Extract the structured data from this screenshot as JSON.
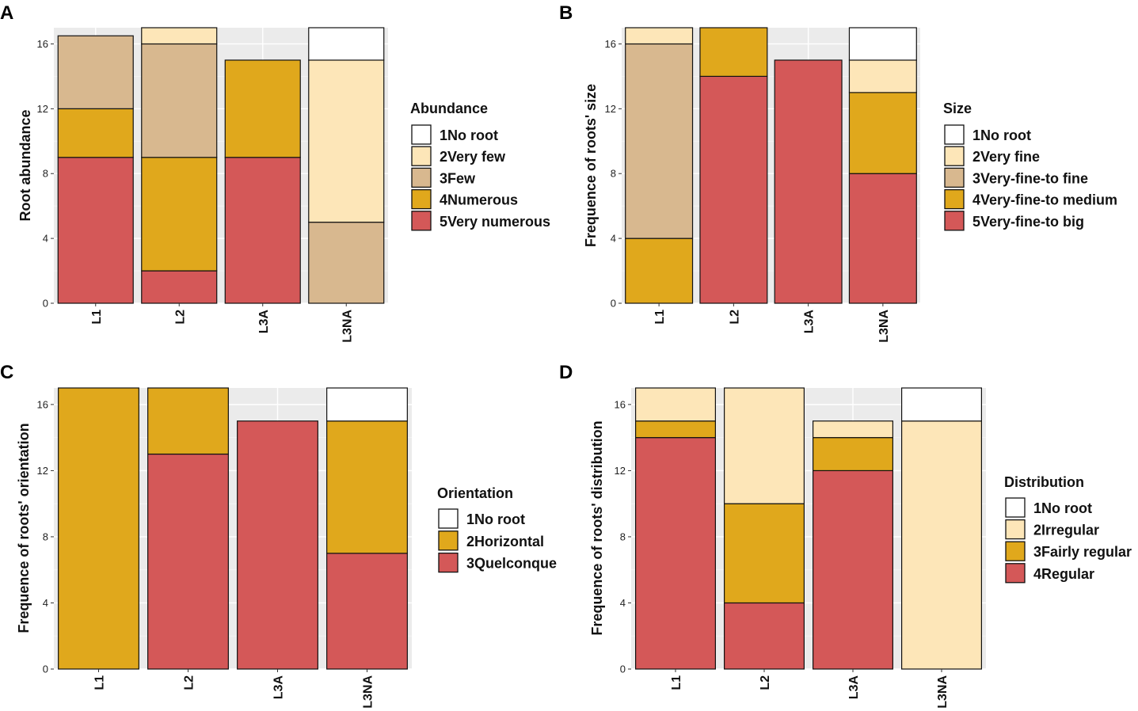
{
  "colors": {
    "no_root": "#ffffff",
    "very_few": "#fde6b8",
    "few": "#d8b88f",
    "numerous": "#e0a81c",
    "very_numerous": "#d45858",
    "panel_bg": "#ebebeb"
  },
  "chart_data": [
    {
      "panel": "A",
      "type": "bar",
      "stacked": true,
      "categories": [
        "L1",
        "L2",
        "L3A",
        "L3NA"
      ],
      "ylabel": "Root abundance",
      "ylim": [
        0,
        17
      ],
      "yticks": [
        0,
        4,
        8,
        12,
        16
      ],
      "legend_title": "Abundance",
      "legend_position": "right",
      "series": [
        {
          "name": "1No root",
          "color": "#ffffff",
          "values": [
            0,
            0,
            0,
            2
          ]
        },
        {
          "name": "2Very few",
          "color": "#fde6b8",
          "values": [
            0,
            1,
            0,
            10
          ]
        },
        {
          "name": "3Few",
          "color": "#d8b88f",
          "values": [
            4.5,
            7,
            0,
            5
          ]
        },
        {
          "name": "4Numerous",
          "color": "#e0a81c",
          "values": [
            3,
            7,
            6,
            0
          ]
        },
        {
          "name": "5Very numerous",
          "color": "#d45858",
          "values": [
            9,
            2,
            9,
            0
          ]
        }
      ]
    },
    {
      "panel": "B",
      "type": "bar",
      "stacked": true,
      "categories": [
        "L1",
        "L2",
        "L3A",
        "L3NA"
      ],
      "ylabel": "Frequence of roots' size",
      "ylim": [
        0,
        17
      ],
      "yticks": [
        0,
        4,
        8,
        12,
        16
      ],
      "legend_title": "Size",
      "legend_position": "right",
      "series": [
        {
          "name": "1No root",
          "color": "#ffffff",
          "values": [
            0,
            0,
            0,
            2
          ]
        },
        {
          "name": "2Very fine",
          "color": "#fde6b8",
          "values": [
            1,
            0,
            0,
            2
          ]
        },
        {
          "name": "3Very-fine-to fine",
          "color": "#d8b88f",
          "values": [
            12,
            0,
            0,
            0
          ]
        },
        {
          "name": "4Very-fine-to medium",
          "color": "#e0a81c",
          "values": [
            4,
            3,
            0,
            5
          ]
        },
        {
          "name": "5Very-fine-to big",
          "color": "#d45858",
          "values": [
            0,
            14,
            15,
            8
          ]
        }
      ]
    },
    {
      "panel": "C",
      "type": "bar",
      "stacked": true,
      "categories": [
        "L1",
        "L2",
        "L3A",
        "L3NA"
      ],
      "ylabel": "Frequence of roots' orientation",
      "ylim": [
        0,
        17
      ],
      "yticks": [
        0,
        4,
        8,
        12,
        16
      ],
      "legend_title": "Orientation",
      "legend_position": "right",
      "series": [
        {
          "name": "1No root",
          "color": "#ffffff",
          "values": [
            0,
            0,
            0,
            2
          ]
        },
        {
          "name": "2Horizontal",
          "color": "#e0a81c",
          "values": [
            17,
            4,
            0,
            8
          ]
        },
        {
          "name": "3Quelconque",
          "color": "#d45858",
          "values": [
            0,
            13,
            15,
            7
          ]
        }
      ]
    },
    {
      "panel": "D",
      "type": "bar",
      "stacked": true,
      "categories": [
        "L1",
        "L2",
        "L3A",
        "L3NA"
      ],
      "ylabel": "Frequence of roots' distribution",
      "ylim": [
        0,
        17
      ],
      "yticks": [
        0,
        4,
        8,
        12,
        16
      ],
      "legend_title": "Distribution",
      "legend_position": "right",
      "series": [
        {
          "name": "1No root",
          "color": "#ffffff",
          "values": [
            0,
            0,
            0,
            2
          ]
        },
        {
          "name": "2Irregular",
          "color": "#fde6b8",
          "values": [
            2,
            7,
            1,
            15
          ]
        },
        {
          "name": "3Fairly regular",
          "color": "#e0a81c",
          "values": [
            1,
            6,
            2,
            0
          ]
        },
        {
          "name": "4Regular",
          "color": "#d45858",
          "values": [
            14,
            4,
            12,
            0
          ]
        }
      ]
    }
  ]
}
